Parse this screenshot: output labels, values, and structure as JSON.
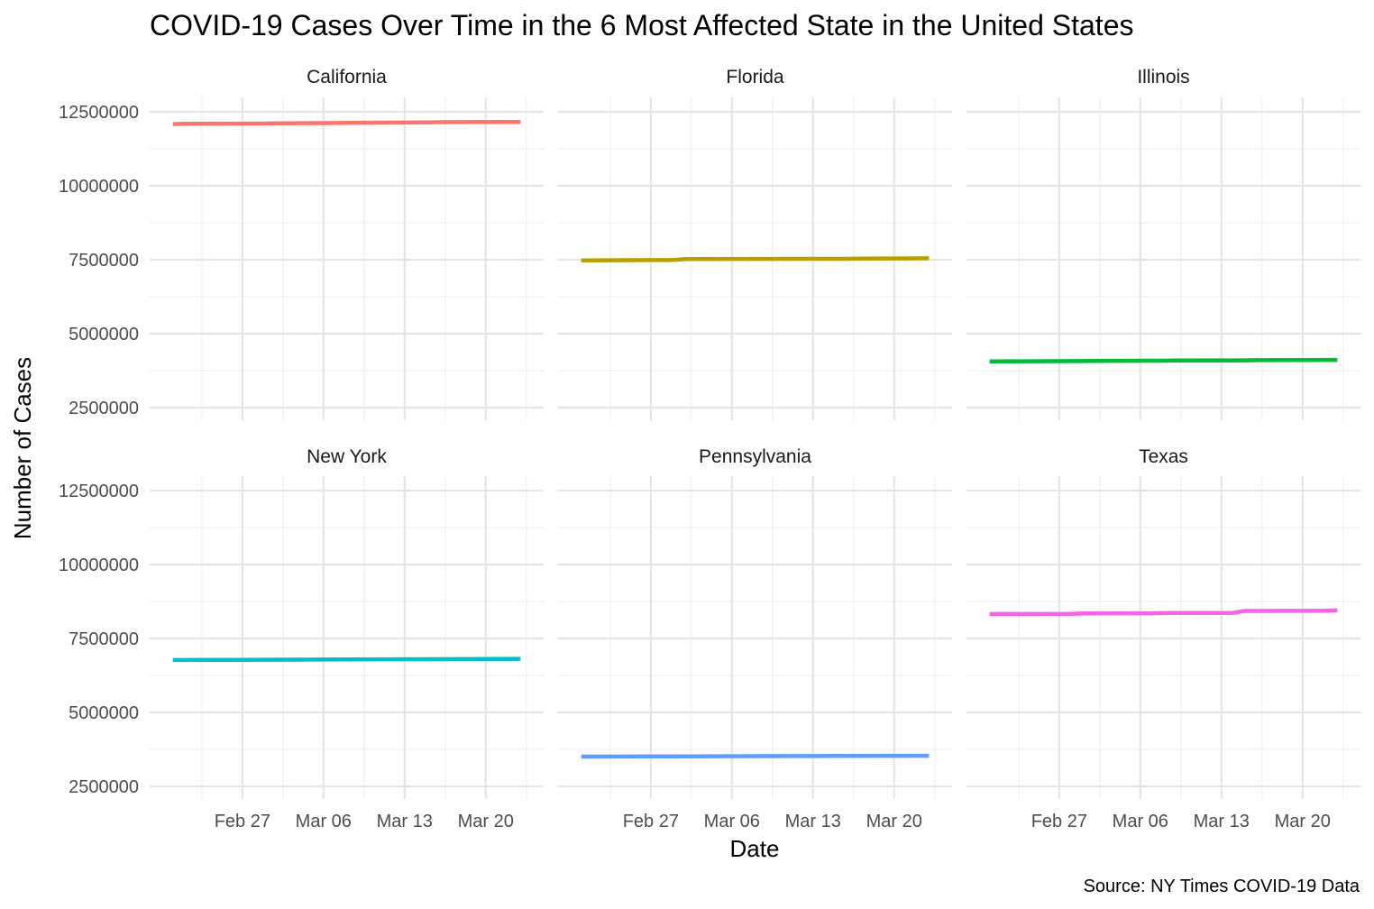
{
  "chart_data": {
    "type": "line",
    "title": "COVID-19 Cases Over Time in the 6 Most Affected State in the United States",
    "xlabel": "Date",
    "ylabel": "Number of Cases",
    "caption": "Source: NY Times COVID-19 Data",
    "x_start": "2022-02-21",
    "x_end": "2022-03-23",
    "xlim": [
      "2022-02-19",
      "2022-03-25"
    ],
    "ylim": [
      2000000,
      12750000
    ],
    "x_ticks": [
      {
        "date": "2022-02-27",
        "label": "Feb 27"
      },
      {
        "date": "2022-03-06",
        "label": "Mar 06"
      },
      {
        "date": "2022-03-13",
        "label": "Mar 13"
      },
      {
        "date": "2022-03-20",
        "label": "Mar 20"
      }
    ],
    "y_ticks": [
      2500000,
      5000000,
      7500000,
      10000000,
      12500000
    ],
    "y_tick_labels": [
      "2500000",
      "5000000",
      "7500000",
      "10000000",
      "12500000"
    ],
    "grid": true,
    "legend": "none",
    "facets": [
      "California",
      "Florida",
      "Illinois",
      "New York",
      "Pennsylvania",
      "Texas"
    ],
    "series": [
      {
        "name": "California",
        "color": "#F8766D",
        "points": [
          [
            "2022-02-21",
            12085000
          ],
          [
            "2022-02-22",
            12095000
          ],
          [
            "2022-03-01",
            12105000
          ],
          [
            "2022-03-02",
            12112000
          ],
          [
            "2022-03-08",
            12125000
          ],
          [
            "2022-03-09",
            12132000
          ],
          [
            "2022-03-15",
            12143000
          ],
          [
            "2022-03-16",
            12150000
          ],
          [
            "2022-03-23",
            12160000
          ]
        ]
      },
      {
        "name": "Florida",
        "color": "#B79F00",
        "points": [
          [
            "2022-02-21",
            7480000
          ],
          [
            "2022-03-01",
            7490000
          ],
          [
            "2022-03-02",
            7525000
          ],
          [
            "2022-03-16",
            7530000
          ],
          [
            "2022-03-17",
            7540000
          ],
          [
            "2022-03-23",
            7550000
          ]
        ]
      },
      {
        "name": "Illinois",
        "color": "#00BA38",
        "points": [
          [
            "2022-02-21",
            4065000
          ],
          [
            "2022-03-01",
            4072000
          ],
          [
            "2022-03-02",
            4080000
          ],
          [
            "2022-03-08",
            4085000
          ],
          [
            "2022-03-09",
            4092000
          ],
          [
            "2022-03-15",
            4098000
          ],
          [
            "2022-03-16",
            4105000
          ],
          [
            "2022-03-23",
            4112000
          ]
        ]
      },
      {
        "name": "New York",
        "color": "#00BFC4",
        "points": [
          [
            "2022-02-21",
            6770000
          ],
          [
            "2022-03-01",
            6780000
          ],
          [
            "2022-03-08",
            6790000
          ],
          [
            "2022-03-15",
            6800000
          ],
          [
            "2022-03-23",
            6810000
          ]
        ]
      },
      {
        "name": "Pennsylvania",
        "color": "#619CFF",
        "points": [
          [
            "2022-02-21",
            3505000
          ],
          [
            "2022-03-01",
            3512000
          ],
          [
            "2022-03-08",
            3520000
          ],
          [
            "2022-03-15",
            3527000
          ],
          [
            "2022-03-23",
            3535000
          ]
        ]
      },
      {
        "name": "Texas",
        "color": "#F564E3",
        "points": [
          [
            "2022-02-21",
            8325000
          ],
          [
            "2022-02-28",
            8330000
          ],
          [
            "2022-03-01",
            8345000
          ],
          [
            "2022-03-07",
            8350000
          ],
          [
            "2022-03-08",
            8360000
          ],
          [
            "2022-03-14",
            8365000
          ],
          [
            "2022-03-15",
            8430000
          ],
          [
            "2022-03-22",
            8440000
          ],
          [
            "2022-03-23",
            8450000
          ]
        ]
      }
    ]
  }
}
